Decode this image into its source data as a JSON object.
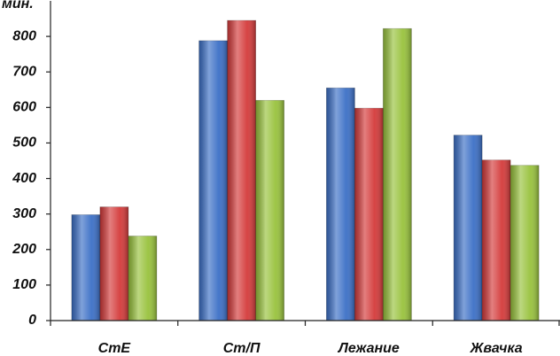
{
  "chart_data": {
    "type": "bar",
    "y_label": "мин.",
    "categories": [
      "СтЕ",
      "Ст/П",
      "Лежание",
      "Жвачка"
    ],
    "series": [
      {
        "color": "#3b6fc6",
        "values": [
          298,
          788,
          655,
          522
        ]
      },
      {
        "color": "#d43a3a",
        "values": [
          320,
          845,
          598,
          452
        ]
      },
      {
        "color": "#98c23c",
        "values": [
          238,
          620,
          822,
          437
        ]
      }
    ],
    "ylim": [
      0,
      900
    ],
    "yticks": [
      0,
      100,
      200,
      300,
      400,
      500,
      600,
      700,
      800
    ],
    "grid": false
  }
}
